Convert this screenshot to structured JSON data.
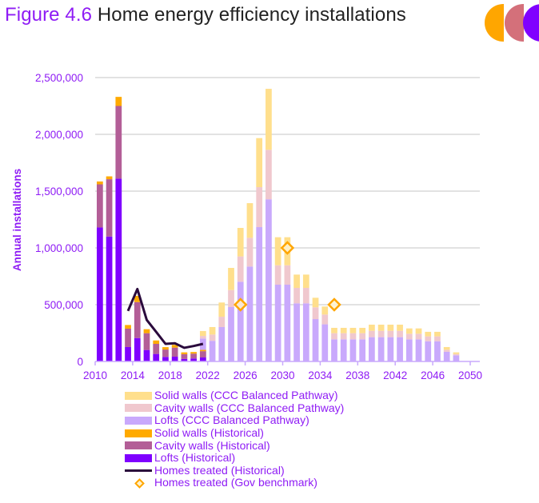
{
  "header": {
    "figure_number": "Figure 4.6",
    "title": "Home energy efficiency installations",
    "logo_colors": [
      "#FFA600",
      "#D4707A",
      "#8000FF"
    ]
  },
  "chart_data": {
    "type": "bar",
    "stacked": true,
    "title": "Home energy efficiency installations",
    "xlabel": "",
    "ylabel": "Annual installations",
    "ylim": [
      0,
      2500000
    ],
    "yticks": [
      0,
      500000,
      1000000,
      1500000,
      2000000,
      2500000
    ],
    "ytick_labels": [
      "0",
      "500,000",
      "1,000,000",
      "1,500,000",
      "2,000,000",
      "2,500,000"
    ],
    "xlim": [
      2010,
      2050
    ],
    "xticks": [
      2010,
      2014,
      2018,
      2022,
      2026,
      2030,
      2034,
      2038,
      2042,
      2046,
      2050
    ],
    "xtick_labels": [
      "2010",
      "2014",
      "2018",
      "2022",
      "2026",
      "2030",
      "2034",
      "2038",
      "2042",
      "2046",
      "2050"
    ],
    "grid": "horizontal",
    "legend_position": "bottom",
    "colors": {
      "solid_pathway": "#FFDF8C",
      "cavity_pathway": "#F0C8CE",
      "lofts_pathway": "#C9A9FC",
      "solid_historical": "#FFAA00",
      "cavity_historical": "#B35E97",
      "lofts_historical": "#7F00FF",
      "homes_treated_line": "#2A0A3C",
      "benchmark_marker": "#FFA600"
    },
    "historical": {
      "years": [
        2010,
        2011,
        2012,
        2013,
        2014,
        2015,
        2016,
        2017,
        2018,
        2019,
        2020,
        2021
      ],
      "series": [
        {
          "name": "Lofts (Historical)",
          "key": "lofts_historical",
          "values": [
            1180000,
            1100000,
            1610000,
            127000,
            206000,
            101000,
            66000,
            40000,
            42000,
            22000,
            26000,
            35000
          ]
        },
        {
          "name": "Cavity walls (Historical)",
          "key": "cavity_historical",
          "values": [
            380000,
            505000,
            640000,
            162000,
            317000,
            148000,
            89000,
            65000,
            80000,
            42000,
            43000,
            55000
          ]
        },
        {
          "name": "Solid walls (Historical)",
          "key": "solid_historical",
          "values": [
            25000,
            25000,
            80000,
            32000,
            55000,
            35000,
            30000,
            21000,
            24000,
            16000,
            14000,
            12000
          ]
        }
      ]
    },
    "pathway": {
      "years": [
        2021,
        2022,
        2023,
        2024,
        2025,
        2026,
        2027,
        2028,
        2029,
        2030,
        2031,
        2032,
        2033,
        2034,
        2035,
        2036,
        2037,
        2038,
        2039,
        2040,
        2041,
        2042,
        2043,
        2044,
        2045,
        2046,
        2047,
        2048
      ],
      "series": [
        {
          "name": "Lofts (CCC Balanced Pathway)",
          "key": "lofts_pathway",
          "values": [
            202000,
            182000,
            303000,
            479000,
            702000,
            836000,
            1183000,
            1428000,
            676000,
            676000,
            512000,
            512000,
            373000,
            327000,
            195000,
            195000,
            195000,
            195000,
            214000,
            214000,
            214000,
            214000,
            195000,
            195000,
            178000,
            178000,
            85000,
            54000
          ]
        },
        {
          "name": "Cavity walls (CCC Balanced Pathway)",
          "key": "cavity_pathway",
          "values": [
            23000,
            55000,
            91000,
            150000,
            223000,
            253000,
            352000,
            436000,
            171000,
            171000,
            136000,
            136000,
            104000,
            86000,
            54000,
            54000,
            54000,
            54000,
            56000,
            56000,
            56000,
            56000,
            49000,
            49000,
            43000,
            43000,
            18000,
            12000
          ]
        },
        {
          "name": "Solid walls (CCC Balanced Pathway)",
          "key": "solid_pathway",
          "values": [
            43000,
            66000,
            125000,
            195000,
            251000,
            305000,
            432000,
            537000,
            247000,
            247000,
            117000,
            117000,
            84000,
            71000,
            47000,
            47000,
            47000,
            47000,
            54000,
            54000,
            54000,
            54000,
            47000,
            47000,
            40000,
            40000,
            24000,
            14000
          ]
        }
      ]
    },
    "homes_treated_historical": {
      "name": "Homes treated (Historical)",
      "years": [
        2013,
        2014,
        2015,
        2016,
        2017,
        2018,
        2019,
        2020,
        2021
      ],
      "values": [
        445000,
        638000,
        366000,
        261000,
        155000,
        160000,
        120000,
        136000,
        155000
      ]
    },
    "homes_treated_benchmark": {
      "name": "Homes treated (Gov benchmark)",
      "years": [
        2025,
        2030,
        2035
      ],
      "values": [
        500000,
        1000000,
        500000
      ]
    }
  },
  "legend": {
    "items": [
      {
        "label": "Solid walls (CCC Balanced Pathway)",
        "type": "swatch",
        "color": "#FFDF8C"
      },
      {
        "label": "Cavity walls (CCC Balanced Pathway)",
        "type": "swatch",
        "color": "#F0C8CE"
      },
      {
        "label": "Lofts (CCC Balanced Pathway)",
        "type": "swatch",
        "color": "#C9A9FC"
      },
      {
        "label": "Solid walls (Historical)",
        "type": "swatch",
        "color": "#FFAA00"
      },
      {
        "label": "Cavity walls (Historical)",
        "type": "swatch",
        "color": "#B35E97"
      },
      {
        "label": "Lofts (Historical)",
        "type": "swatch",
        "color": "#7F00FF"
      },
      {
        "label": "Homes treated (Historical)",
        "type": "line",
        "color": "#2A0A3C"
      },
      {
        "label": "Homes treated (Gov benchmark)",
        "type": "diamond",
        "color": "#FFA600"
      }
    ]
  }
}
